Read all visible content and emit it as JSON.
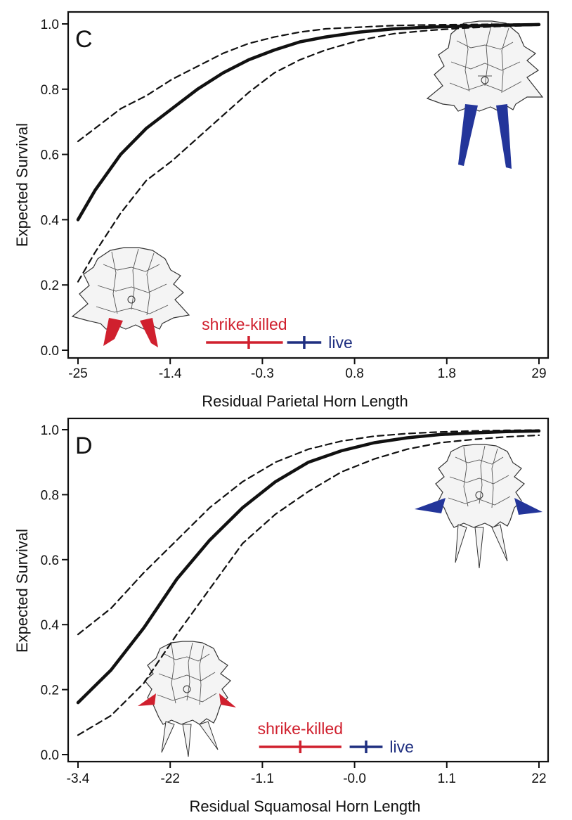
{
  "colors": {
    "shrike_killed": "#d0202e",
    "live": "#1f2f80",
    "curve": "#111111",
    "horn_blue": "#23359a",
    "horn_red": "#d0202e"
  },
  "chart_data": [
    {
      "type": "line",
      "panel": "C",
      "xlabel": "Residual Parietal Horn Length",
      "ylabel": "Expected Survival",
      "x_tick_labels": [
        "-25",
        "-1.4",
        "-0.3",
        "0.8",
        "1.8",
        "29"
      ],
      "y_tick_labels": [
        "0.0",
        "0.2",
        "0.4",
        "0.6",
        "0.8",
        "1.0"
      ],
      "xlim": [
        -2.5,
        2.9
      ],
      "ylim": [
        0.0,
        1.0
      ],
      "grid": false,
      "series": [
        {
          "role": "fit",
          "style": "solid",
          "x": [
            -2.5,
            -2.3,
            -2.0,
            -1.7,
            -1.4,
            -1.1,
            -0.8,
            -0.5,
            -0.2,
            0.1,
            0.4,
            0.8,
            1.2,
            1.6,
            2.0,
            2.4,
            2.9
          ],
          "y": [
            0.4,
            0.49,
            0.6,
            0.68,
            0.74,
            0.8,
            0.85,
            0.89,
            0.92,
            0.945,
            0.96,
            0.975,
            0.985,
            0.99,
            0.993,
            0.996,
            0.998
          ]
        },
        {
          "role": "upper_ci",
          "style": "dashed",
          "x": [
            -2.5,
            -2.3,
            -2.0,
            -1.7,
            -1.4,
            -1.1,
            -0.8,
            -0.5,
            -0.2,
            0.1,
            0.4,
            0.8,
            1.2,
            1.6,
            2.0,
            2.4,
            2.9
          ],
          "y": [
            0.64,
            0.68,
            0.74,
            0.78,
            0.83,
            0.87,
            0.91,
            0.94,
            0.96,
            0.975,
            0.985,
            0.99,
            0.995,
            0.997,
            0.998,
            0.999,
            1.0
          ]
        },
        {
          "role": "lower_ci",
          "style": "dashed",
          "x": [
            -2.5,
            -2.3,
            -2.0,
            -1.7,
            -1.4,
            -1.1,
            -0.8,
            -0.5,
            -0.2,
            0.1,
            0.4,
            0.8,
            1.2,
            1.6,
            2.0,
            2.4,
            2.9
          ],
          "y": [
            0.21,
            0.3,
            0.42,
            0.52,
            0.58,
            0.65,
            0.72,
            0.79,
            0.85,
            0.89,
            0.92,
            0.95,
            0.97,
            0.98,
            0.987,
            0.992,
            0.996
          ]
        }
      ],
      "groups": [
        {
          "name": "shrike-killed",
          "color": "#d0202e",
          "mean": -0.5,
          "low": -1.0,
          "high": -0.1
        },
        {
          "name": "live",
          "color": "#1f2f80",
          "mean": 0.15,
          "low": -0.05,
          "high": 0.35
        }
      ]
    },
    {
      "type": "line",
      "panel": "D",
      "xlabel": "Residual Squamosal Horn Length",
      "ylabel": "Expected Survival",
      "x_tick_labels": [
        "-3.4",
        "-22",
        "-1.1",
        "-0.0",
        "1.1",
        "22"
      ],
      "y_tick_labels": [
        "0.0",
        "0.2",
        "0.4",
        "0.6",
        "0.8",
        "1.0"
      ],
      "xlim": [
        -3.4,
        2.2
      ],
      "ylim": [
        0.0,
        1.0
      ],
      "grid": false,
      "series": [
        {
          "role": "fit",
          "style": "solid",
          "x": [
            -3.4,
            -3.0,
            -2.6,
            -2.2,
            -1.8,
            -1.4,
            -1.0,
            -0.6,
            -0.2,
            0.2,
            0.6,
            1.0,
            1.4,
            1.8,
            2.2
          ],
          "y": [
            0.16,
            0.26,
            0.39,
            0.54,
            0.66,
            0.76,
            0.84,
            0.9,
            0.935,
            0.96,
            0.975,
            0.985,
            0.99,
            0.994,
            0.996
          ]
        },
        {
          "role": "upper_ci",
          "style": "dashed",
          "x": [
            -3.4,
            -3.0,
            -2.6,
            -2.2,
            -1.8,
            -1.4,
            -1.0,
            -0.6,
            -0.2,
            0.2,
            0.6,
            1.0,
            1.4,
            1.8,
            2.2
          ],
          "y": [
            0.37,
            0.45,
            0.56,
            0.66,
            0.76,
            0.84,
            0.9,
            0.94,
            0.965,
            0.98,
            0.988,
            0.993,
            0.996,
            0.998,
            0.999
          ]
        },
        {
          "role": "lower_ci",
          "style": "dashed",
          "x": [
            -3.4,
            -3.0,
            -2.6,
            -2.2,
            -1.8,
            -1.4,
            -1.0,
            -0.6,
            -0.2,
            0.2,
            0.6,
            1.0,
            1.4,
            1.8,
            2.2
          ],
          "y": [
            0.06,
            0.12,
            0.22,
            0.37,
            0.51,
            0.65,
            0.74,
            0.81,
            0.87,
            0.91,
            0.94,
            0.96,
            0.97,
            0.978,
            0.983
          ]
        }
      ],
      "groups": [
        {
          "name": "shrike-killed",
          "color": "#d0202e",
          "mean": -0.7,
          "low": -1.2,
          "high": -0.2
        },
        {
          "name": "live",
          "color": "#1f2f80",
          "mean": 0.1,
          "low": -0.1,
          "high": 0.3
        }
      ]
    }
  ]
}
